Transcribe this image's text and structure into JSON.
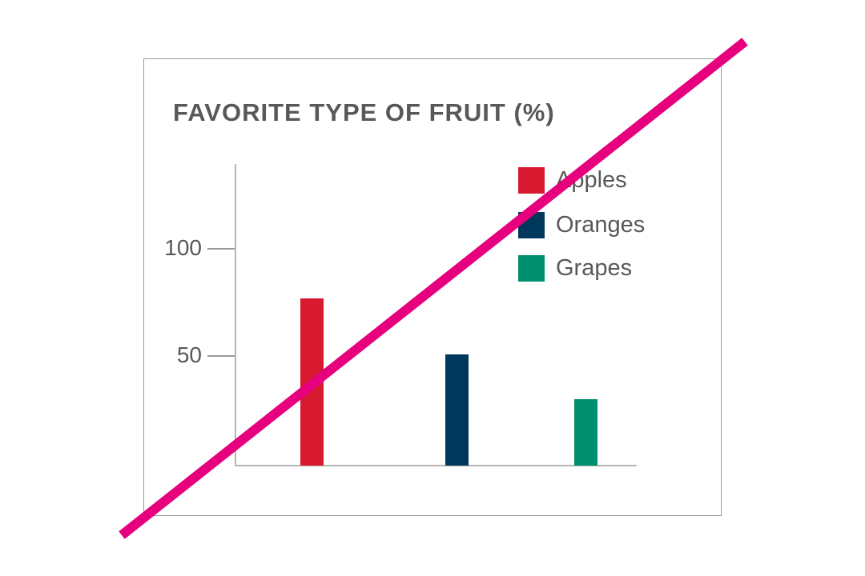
{
  "chart_data": {
    "type": "bar",
    "title": "FAVORITE TYPE OF FRUIT (%)",
    "categories": [
      "Apples",
      "Oranges",
      "Grapes"
    ],
    "values": [
      78,
      52,
      31
    ],
    "colors": [
      "#D71A30",
      "#00385C",
      "#008F6E"
    ],
    "xlabel": "",
    "ylabel": "",
    "yticks": [
      50,
      100
    ],
    "ylim": [
      0,
      140
    ],
    "grid": false,
    "legend": {
      "position": "top-right",
      "entries": [
        "Apples",
        "Oranges",
        "Grapes"
      ]
    }
  },
  "ticks": [
    {
      "label": "100",
      "value": 100
    },
    {
      "label": "50",
      "value": 50
    }
  ],
  "legend": [
    {
      "label": "Apples",
      "color": "#D71A30"
    },
    {
      "label": "Oranges",
      "color": "#00385C"
    },
    {
      "label": "Grapes",
      "color": "#008F6E"
    }
  ],
  "overlay": {
    "strike_color": "#E6007E"
  }
}
